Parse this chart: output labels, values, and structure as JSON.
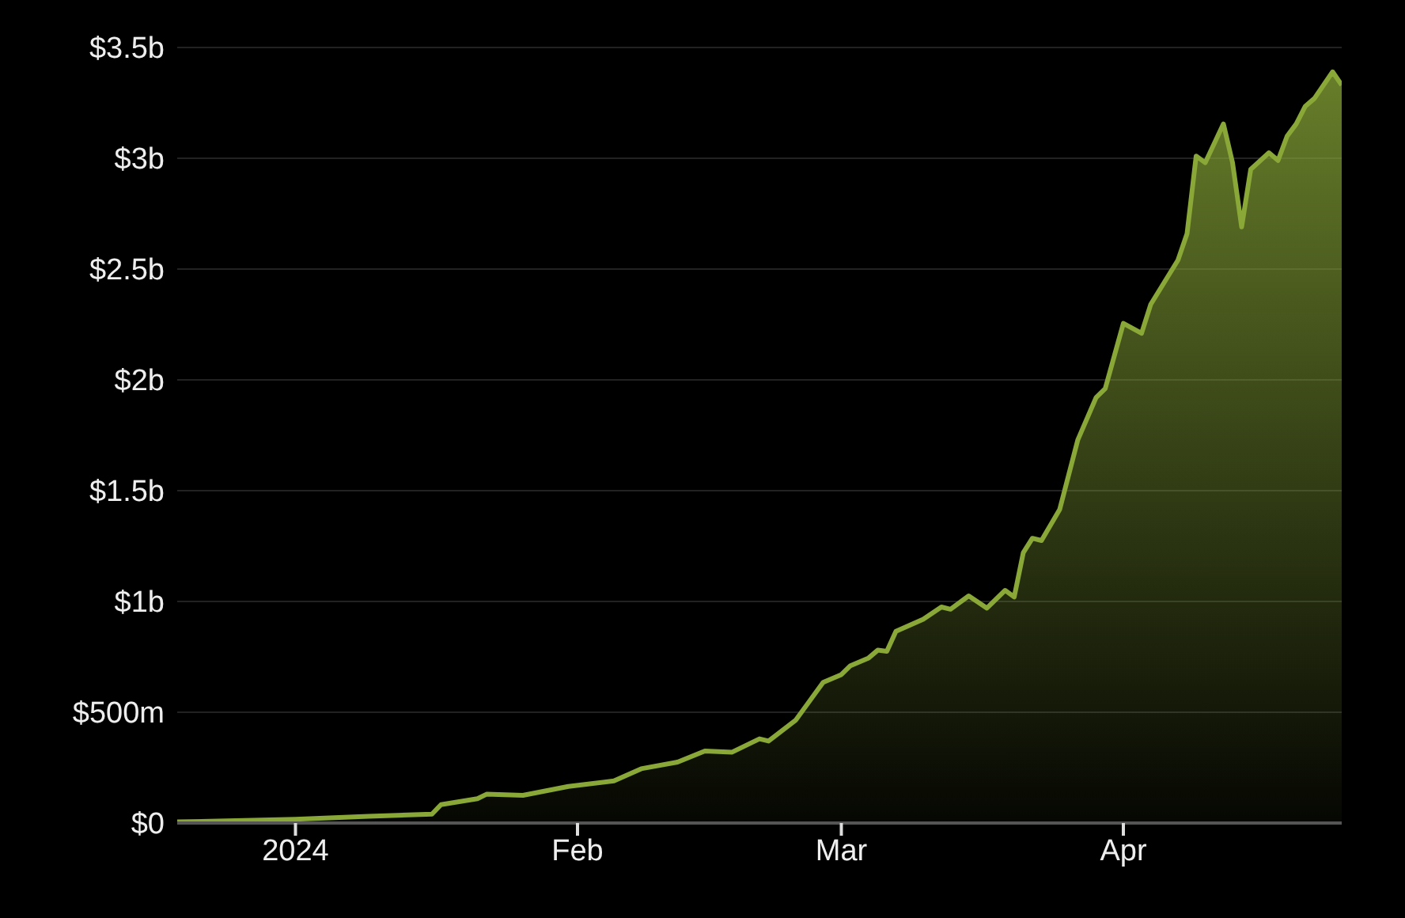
{
  "chart_data": {
    "type": "area",
    "x": [
      "2023-12-19",
      "2024-01-01",
      "2024-01-09",
      "2024-01-16",
      "2024-01-17",
      "2024-01-21",
      "2024-01-22",
      "2024-01-26",
      "2024-01-31",
      "2024-02-05",
      "2024-02-08",
      "2024-02-12",
      "2024-02-15",
      "2024-02-18",
      "2024-02-21",
      "2024-02-22",
      "2024-02-25",
      "2024-02-28",
      "2024-03-01",
      "2024-03-02",
      "2024-03-04",
      "2024-03-05",
      "2024-03-06",
      "2024-03-07",
      "2024-03-10",
      "2024-03-12",
      "2024-03-13",
      "2024-03-15",
      "2024-03-17",
      "2024-03-19",
      "2024-03-20",
      "2024-03-21",
      "2024-03-22",
      "2024-03-23",
      "2024-03-25",
      "2024-03-27",
      "2024-03-29",
      "2024-03-30",
      "2024-04-01",
      "2024-04-03",
      "2024-04-04",
      "2024-04-07",
      "2024-04-08",
      "2024-04-09",
      "2024-04-10",
      "2024-04-12",
      "2024-04-13",
      "2024-04-14",
      "2024-04-15",
      "2024-04-17",
      "2024-04-18",
      "2024-04-19",
      "2024-04-20",
      "2024-04-21",
      "2024-04-22",
      "2024-04-24",
      "2024-04-25"
    ],
    "series": [
      {
        "color": "#8aa838",
        "values": [
          5000000,
          17000000,
          30000000,
          40000000,
          83000000,
          110000000,
          130000000,
          125000000,
          165000000,
          190000000,
          245000000,
          275000000,
          325000000,
          320000000,
          380000000,
          370000000,
          465000000,
          635000000,
          670000000,
          710000000,
          745000000,
          780000000,
          775000000,
          865000000,
          920000000,
          975000000,
          965000000,
          1025000000,
          970000000,
          1050000000,
          1020000000,
          1220000000,
          1285000000,
          1275000000,
          1415000000,
          1730000000,
          1920000000,
          1960000000,
          2255000000,
          2210000000,
          2340000000,
          2540000000,
          2660000000,
          3010000000,
          2980000000,
          3155000000,
          2980000000,
          2690000000,
          2950000000,
          3025000000,
          2990000000,
          3100000000,
          3155000000,
          3235000000,
          3270000000,
          3390000000,
          3330000000
        ]
      }
    ],
    "xlim": [
      "2023-12-19",
      "2024-04-25"
    ],
    "xticks": [
      {
        "value": "2024-01-01",
        "label": "2024"
      },
      {
        "value": "2024-02-01",
        "label": "Feb"
      },
      {
        "value": "2024-03-01",
        "label": "Mar"
      },
      {
        "value": "2024-04-01",
        "label": "Apr"
      }
    ],
    "ylim": [
      0,
      3500000000
    ],
    "yticks": [
      {
        "value": 0,
        "label": "$0"
      },
      {
        "value": 500000000,
        "label": "$500m"
      },
      {
        "value": 1000000000,
        "label": "$1b"
      },
      {
        "value": 1500000000,
        "label": "$1.5b"
      },
      {
        "value": 2000000000,
        "label": "$2b"
      },
      {
        "value": 2500000000,
        "label": "$2.5b"
      },
      {
        "value": 3000000000,
        "label": "$3b"
      },
      {
        "value": 3500000000,
        "label": "$3.5b"
      }
    ],
    "grid": "y",
    "marker": "none",
    "line_style": "solid"
  }
}
